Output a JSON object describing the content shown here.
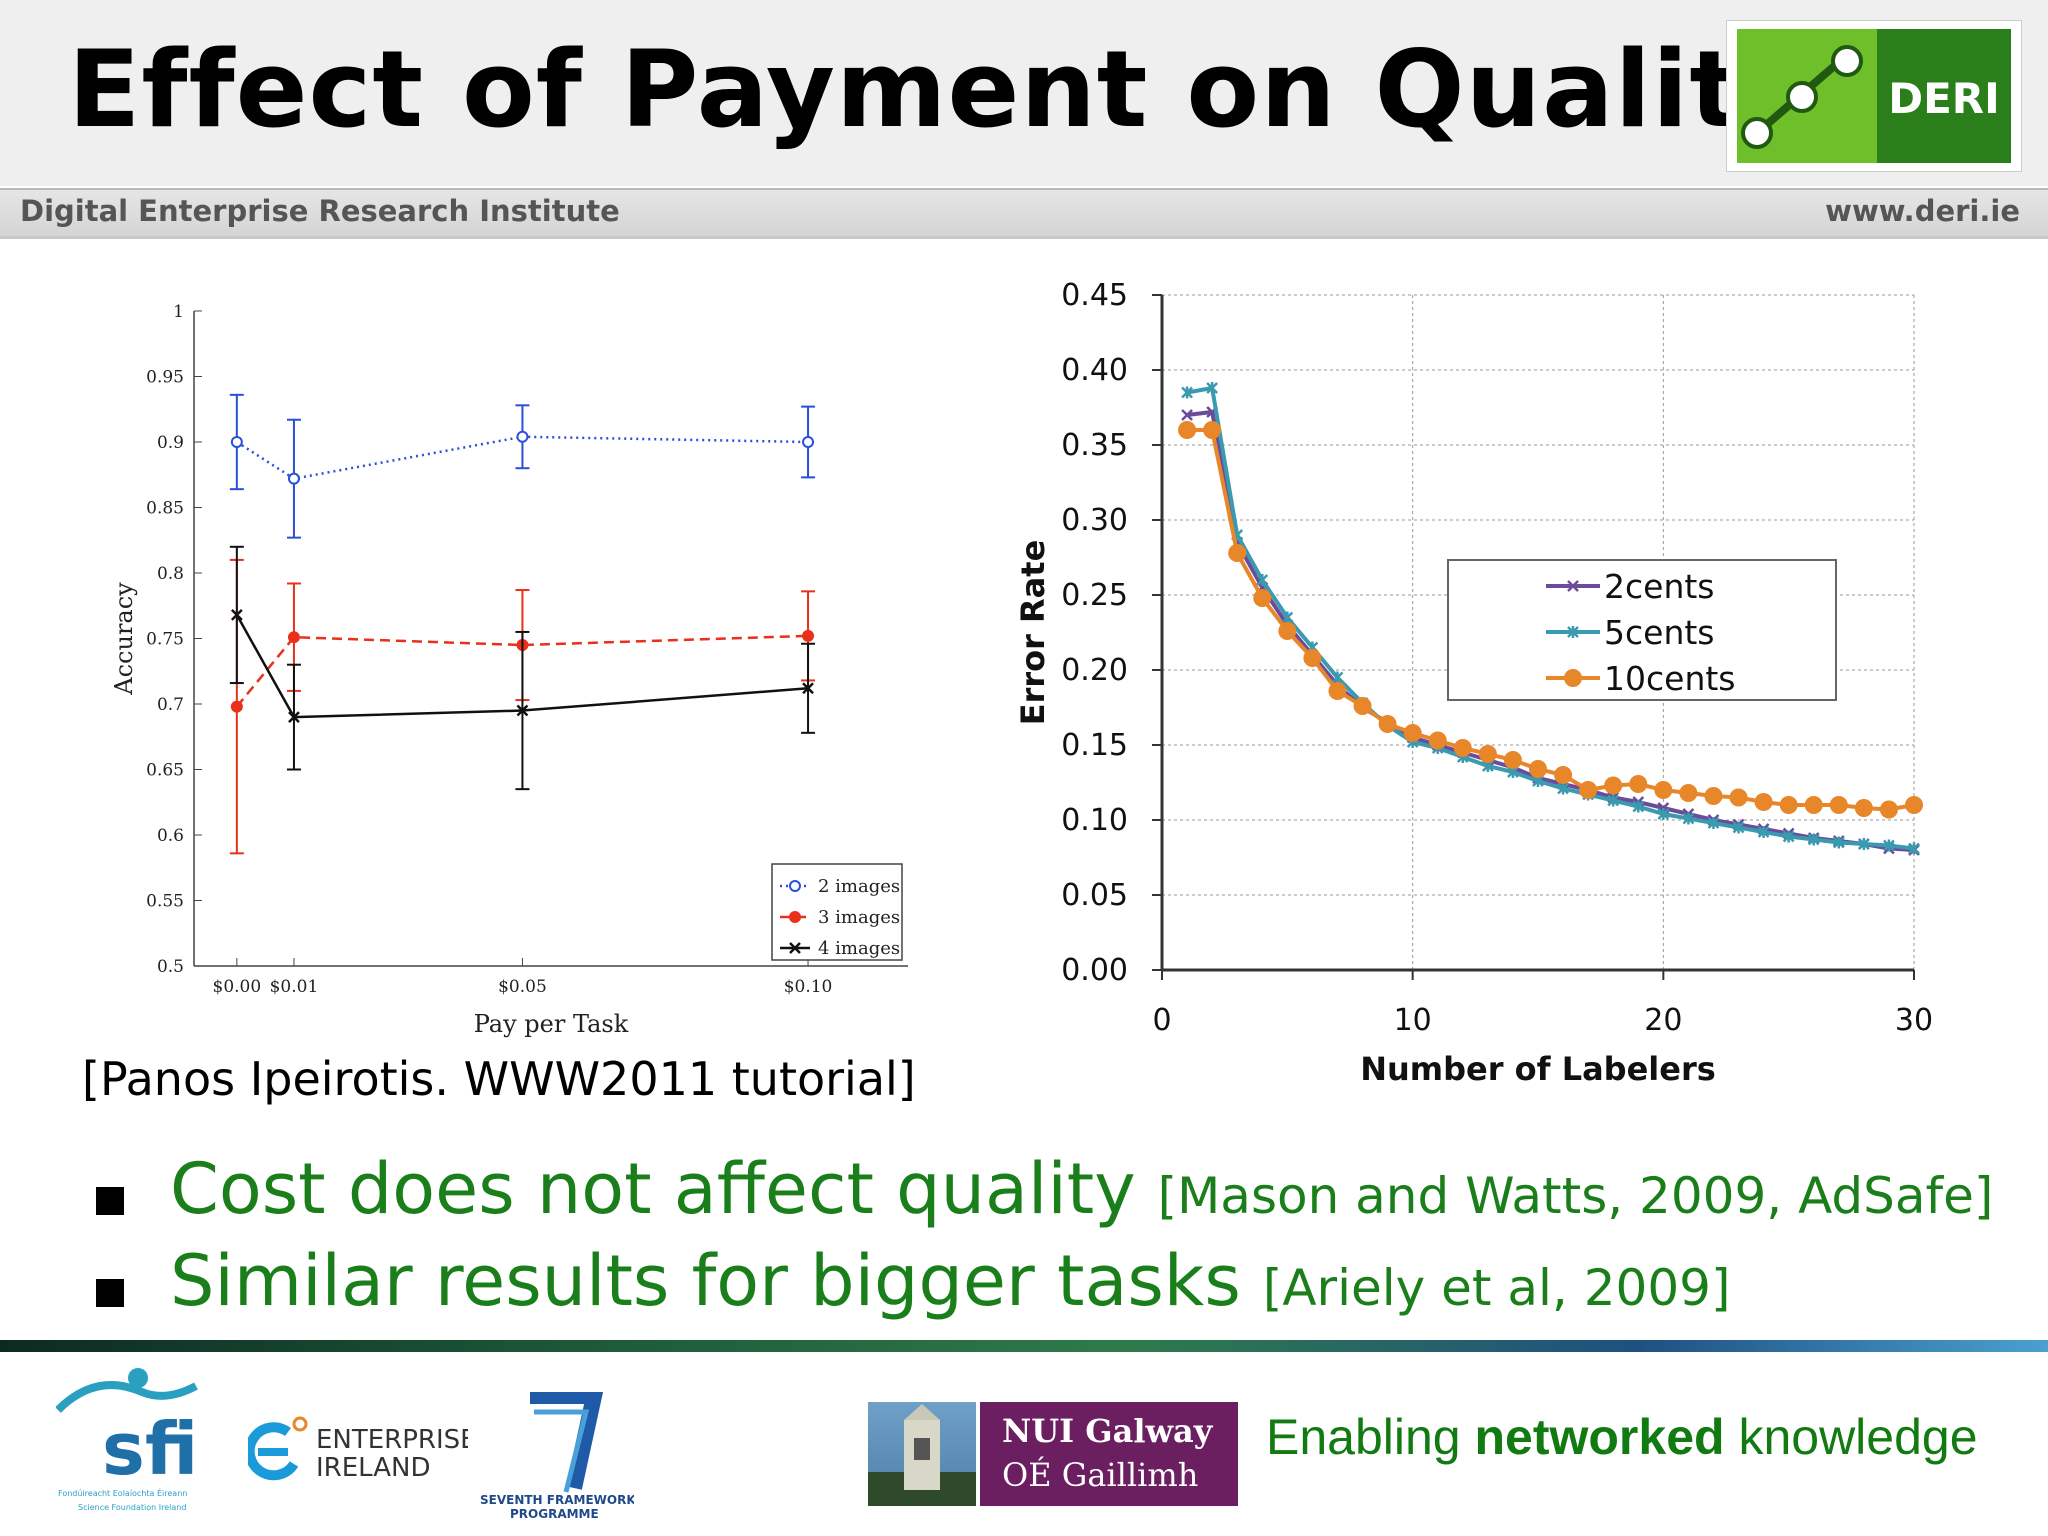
{
  "slide": {
    "title": "Effect of Payment on Quality",
    "institute": "Digital Enterprise Research Institute",
    "website": "www.deri.ie",
    "logo_text": "DERI",
    "citation": "[Panos Ipeirotis. WWW2011 tutorial]",
    "bullets": [
      {
        "main": "Cost does not affect quality",
        "ref": "[Mason and Watts, 2009, AdSafe]"
      },
      {
        "main": "Similar results for bigger tasks",
        "ref": "[Ariely et al, 2009]"
      }
    ],
    "footer": {
      "tagline_pre": "Enabling ",
      "tagline_bold": "networked",
      "tagline_post": " knowledge",
      "nui_line1": "NUI Galway",
      "nui_line2": "OÉ Gaillimh",
      "sfi_text": "sfi",
      "sfi_sub1": "Fondúireacht Eolaíochta Éireann",
      "sfi_sub2": "Science Foundation Ireland",
      "ei_line1": "ENTERPRISE",
      "ei_line2": "IRELAND",
      "fp7_line1": "SEVENTH FRAMEWORK",
      "fp7_line2": "PROGRAMME"
    },
    "colors": {
      "green_text": "#1a7f1a",
      "nui_purple": "#6b1f60",
      "deri_green": "#2e8b1e"
    }
  },
  "chart_data": [
    {
      "type": "line",
      "title": "",
      "xlabel": "Pay per Task",
      "ylabel": "Accuracy",
      "x_positions": [
        0.0,
        0.01,
        0.05,
        0.1
      ],
      "categories": [
        "$0.00",
        "$0.01",
        "$0.05",
        "$0.10"
      ],
      "ylim": [
        0.5,
        1.0
      ],
      "yticks": [
        "0.5",
        "0.55",
        "0.6",
        "0.65",
        "0.7",
        "0.75",
        "0.8",
        "0.85",
        "0.9",
        "0.95",
        "1"
      ],
      "legend_position": "bottom-right",
      "series": [
        {
          "name": "2 images",
          "color": "#2a4fd8",
          "style": "dotted",
          "marker": "open-circle",
          "values": [
            0.9,
            0.872,
            0.904,
            0.9
          ],
          "err": [
            0.036,
            0.045,
            0.024,
            0.027
          ]
        },
        {
          "name": "3 images",
          "color": "#e8301a",
          "style": "dashed",
          "marker": "filled-circle",
          "values": [
            0.698,
            0.751,
            0.745,
            0.752
          ],
          "err": [
            0.112,
            0.041,
            0.042,
            0.034
          ]
        },
        {
          "name": "4 images",
          "color": "#111111",
          "style": "solid",
          "marker": "x",
          "values": [
            0.768,
            0.69,
            0.695,
            0.712
          ],
          "err": [
            0.052,
            0.04,
            0.06,
            0.034
          ]
        }
      ]
    },
    {
      "type": "line",
      "title": "",
      "xlabel": "Number of Labelers",
      "ylabel": "Error Rate",
      "xlim": [
        0,
        30
      ],
      "ylim": [
        0,
        0.45
      ],
      "xticks": [
        "0",
        "10",
        "20",
        "30"
      ],
      "yticks": [
        "0.00",
        "0.05",
        "0.10",
        "0.15",
        "0.20",
        "0.25",
        "0.30",
        "0.35",
        "0.40",
        "0.45"
      ],
      "grid": true,
      "legend_position": "center-right",
      "x": [
        1,
        2,
        3,
        4,
        5,
        6,
        7,
        8,
        9,
        10,
        11,
        12,
        13,
        14,
        15,
        16,
        17,
        18,
        19,
        20,
        21,
        22,
        23,
        24,
        25,
        26,
        27,
        28,
        29,
        30
      ],
      "series": [
        {
          "name": "2cents",
          "color": "#6b4b9a",
          "marker": "x",
          "values": [
            0.37,
            0.372,
            0.285,
            0.255,
            0.23,
            0.21,
            0.19,
            0.175,
            0.165,
            0.155,
            0.15,
            0.145,
            0.14,
            0.135,
            0.128,
            0.124,
            0.12,
            0.115,
            0.112,
            0.108,
            0.104,
            0.1,
            0.097,
            0.094,
            0.091,
            0.088,
            0.086,
            0.084,
            0.081,
            0.08
          ]
        },
        {
          "name": "5cents",
          "color": "#3a9ab0",
          "marker": "asterisk",
          "values": [
            0.385,
            0.388,
            0.29,
            0.26,
            0.235,
            0.215,
            0.195,
            0.178,
            0.163,
            0.152,
            0.148,
            0.142,
            0.136,
            0.132,
            0.126,
            0.121,
            0.117,
            0.113,
            0.109,
            0.104,
            0.101,
            0.098,
            0.095,
            0.092,
            0.089,
            0.087,
            0.085,
            0.084,
            0.083,
            0.081
          ]
        },
        {
          "name": "10cents",
          "color": "#e8862a",
          "marker": "filled-circle",
          "values": [
            0.36,
            0.36,
            0.278,
            0.248,
            0.226,
            0.208,
            0.186,
            0.176,
            0.164,
            0.158,
            0.153,
            0.148,
            0.144,
            0.14,
            0.134,
            0.13,
            0.12,
            0.123,
            0.124,
            0.12,
            0.118,
            0.116,
            0.115,
            0.112,
            0.11,
            0.11,
            0.11,
            0.108,
            0.107,
            0.11
          ]
        }
      ]
    }
  ]
}
